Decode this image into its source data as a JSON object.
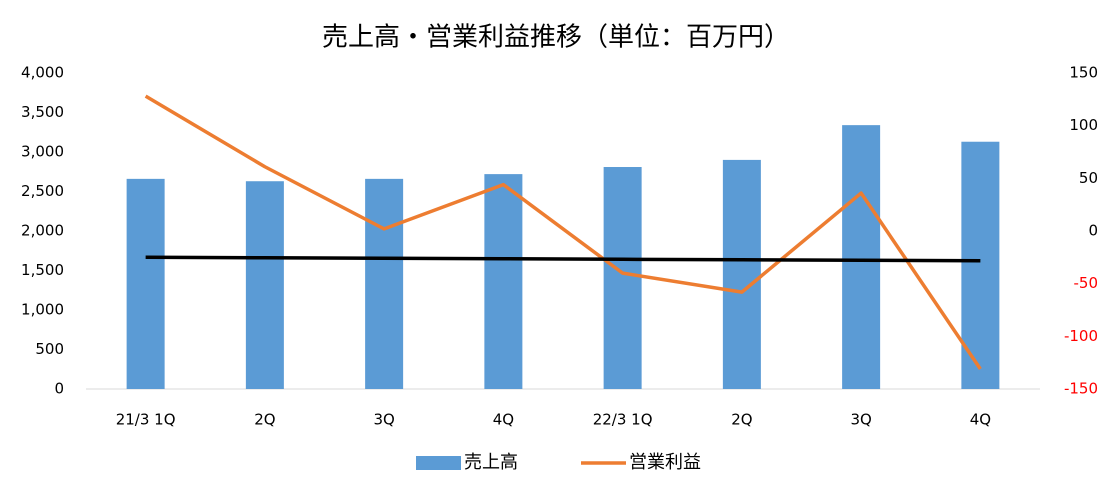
{
  "chart_data": {
    "type": "bar-line",
    "title": "売上高・営業利益推移（単位：百万円）",
    "categories": [
      "21/3 1Q",
      "2Q",
      "3Q",
      "4Q",
      "22/3 1Q",
      "2Q",
      "3Q",
      "4Q"
    ],
    "series": [
      {
        "name": "売上高",
        "type": "bar",
        "color": "#5b9bd5",
        "values": [
          2660,
          2630,
          2660,
          2720,
          2810,
          2900,
          3340,
          3130
        ]
      },
      {
        "name": "営業利益",
        "type": "line",
        "axis": "y2",
        "color": "#ed7d31",
        "values": [
          128,
          61,
          2,
          44,
          -40,
          -58,
          36,
          -131
        ]
      },
      {
        "type": "line",
        "color": "#000000",
        "values": [
          1667,
          1661,
          1655,
          1649,
          1642,
          1636,
          1630,
          1624
        ]
      }
    ],
    "ylim": [
      0,
      4000
    ],
    "yticks": [
      0,
      {
        "value": 500,
        "label": "500"
      },
      {
        "value": 1000,
        "label": "1,000"
      },
      {
        "value": 1500,
        "label": "1,500"
      },
      {
        "value": 2000,
        "label": "2,000"
      },
      {
        "value": 2500,
        "label": "2,500"
      },
      {
        "value": 3000,
        "label": "3,000"
      },
      {
        "value": 3500,
        "label": "3,500"
      },
      {
        "value": 4000,
        "label": "4,000"
      }
    ],
    "y2lim": [
      -150,
      150
    ],
    "y2ticks": [
      -150,
      -100,
      -50,
      0,
      50,
      100,
      150
    ],
    "y2_negative_color": "#ff0000",
    "legend": "bottom"
  }
}
